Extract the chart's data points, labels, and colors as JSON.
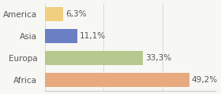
{
  "categories": [
    "America",
    "Asia",
    "Europa",
    "Africa"
  ],
  "values": [
    6.3,
    11.1,
    33.3,
    49.2
  ],
  "labels": [
    "6,3%",
    "11,1%",
    "33,3%",
    "49,2%"
  ],
  "bar_colors": [
    "#f0d080",
    "#6b7fc4",
    "#b5c98e",
    "#e8a97e"
  ],
  "background_color": "#f7f7f4",
  "xlim": [
    0,
    58
  ],
  "label_fontsize": 7.5,
  "tick_fontsize": 7.5
}
